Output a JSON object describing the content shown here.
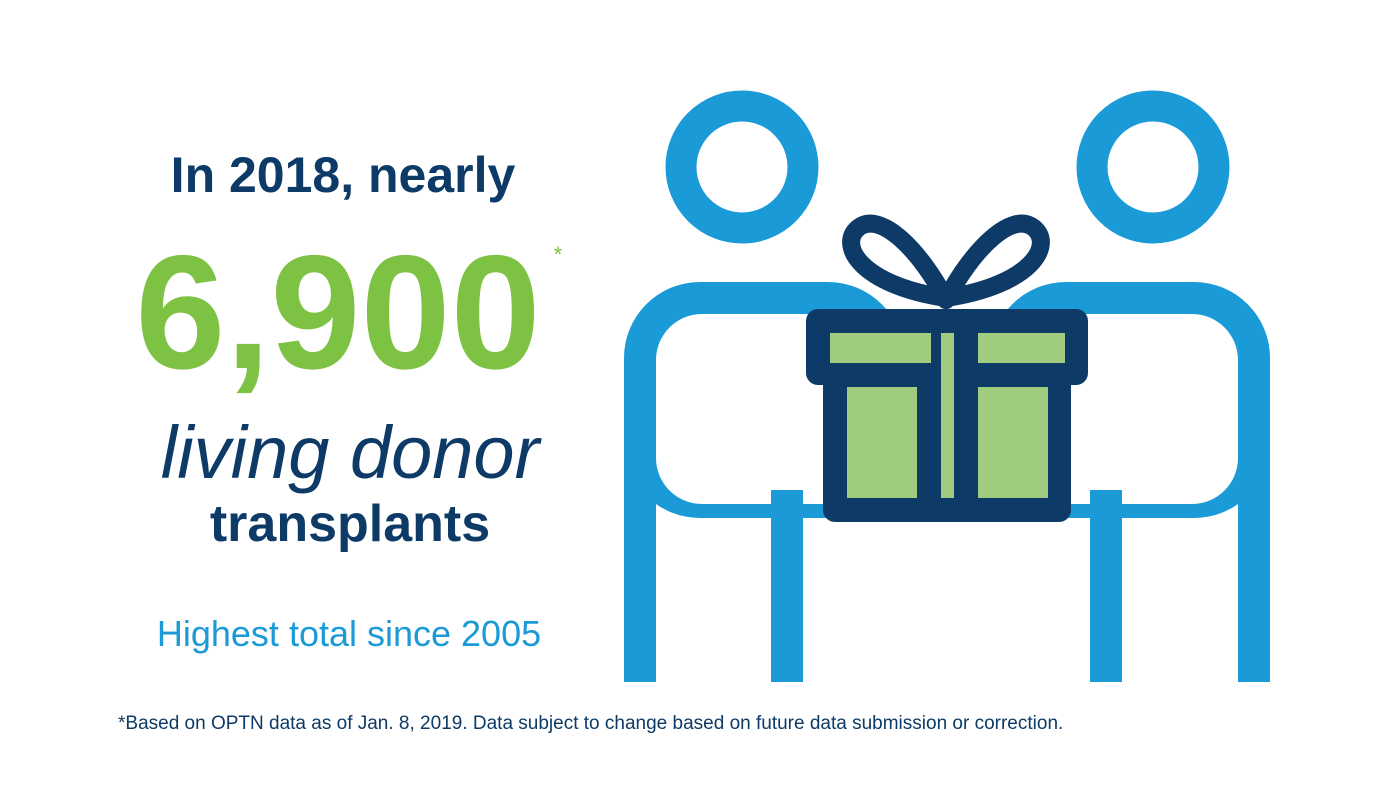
{
  "headline": "In 2018, nearly",
  "figure": "6,900",
  "asterisk": "*",
  "subject_line1": "living donor",
  "subject_line2": "transplants",
  "highlight": "Highest total since 2005",
  "footnote": "*Based on OPTN data as of Jan. 8, 2019. Data subject to change based on future data submission or correction."
}
